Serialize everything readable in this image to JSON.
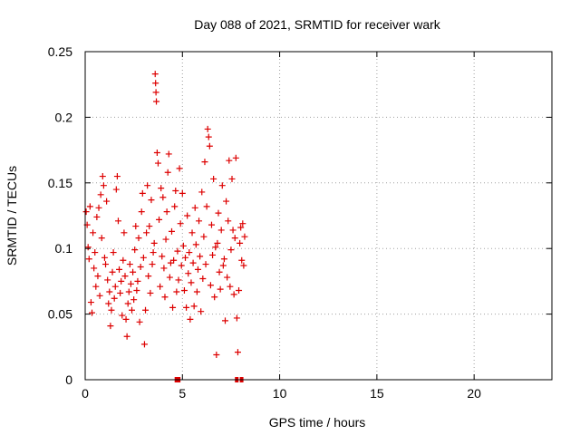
{
  "chart_data": {
    "type": "scatter",
    "title": "Day 088 of 2021, SRMTID for receiver wark",
    "xlabel": "GPS time / hours",
    "ylabel": "SRMTID / TECUs",
    "xlim": [
      0,
      24
    ],
    "ylim": [
      0,
      0.25
    ],
    "xticks": [
      0,
      5,
      10,
      15,
      20
    ],
    "xtick_labels": [
      "0",
      "5",
      "10",
      "15",
      "20"
    ],
    "yticks": [
      0,
      0.05,
      0.1,
      0.15,
      0.2,
      0.25
    ],
    "ytick_labels": [
      "0",
      "0.05",
      "0.1",
      "0.15",
      "0.2",
      "0.25"
    ],
    "grid": true,
    "marker": "+",
    "color": "#dd0000",
    "series": [
      {
        "name": "SRMTID",
        "points": [
          [
            0.05,
            0.128
          ],
          [
            0.1,
            0.118
          ],
          [
            0.15,
            0.101
          ],
          [
            0.2,
            0.092
          ],
          [
            0.25,
            0.132
          ],
          [
            0.3,
            0.059
          ],
          [
            0.35,
            0.051
          ],
          [
            0.4,
            0.112
          ],
          [
            0.45,
            0.085
          ],
          [
            0.5,
            0.097
          ],
          [
            0.55,
            0.071
          ],
          [
            0.6,
            0.124
          ],
          [
            0.65,
            0.079
          ],
          [
            0.7,
            0.131
          ],
          [
            0.75,
            0.064
          ],
          [
            0.8,
            0.141
          ],
          [
            0.85,
            0.108
          ],
          [
            0.9,
            0.155
          ],
          [
            0.95,
            0.148
          ],
          [
            1.0,
            0.093
          ],
          [
            1.05,
            0.088
          ],
          [
            1.1,
            0.136
          ],
          [
            1.15,
            0.076
          ],
          [
            1.2,
            0.058
          ],
          [
            1.25,
            0.067
          ],
          [
            1.3,
            0.041
          ],
          [
            1.35,
            0.053
          ],
          [
            1.4,
            0.082
          ],
          [
            1.45,
            0.097
          ],
          [
            1.5,
            0.062
          ],
          [
            1.55,
            0.071
          ],
          [
            1.6,
            0.145
          ],
          [
            1.65,
            0.155
          ],
          [
            1.7,
            0.121
          ],
          [
            1.75,
            0.084
          ],
          [
            1.8,
            0.066
          ],
          [
            1.85,
            0.075
          ],
          [
            1.9,
            0.049
          ],
          [
            1.95,
            0.091
          ],
          [
            2.0,
            0.112
          ],
          [
            2.05,
            0.079
          ],
          [
            2.1,
            0.046
          ],
          [
            2.15,
            0.033
          ],
          [
            2.2,
            0.058
          ],
          [
            2.25,
            0.067
          ],
          [
            2.3,
            0.088
          ],
          [
            2.35,
            0.073
          ],
          [
            2.4,
            0.053
          ],
          [
            2.45,
            0.082
          ],
          [
            2.5,
            0.061
          ],
          [
            2.55,
            0.099
          ],
          [
            2.6,
            0.117
          ],
          [
            2.65,
            0.068
          ],
          [
            2.7,
            0.075
          ],
          [
            2.75,
            0.108
          ],
          [
            2.8,
            0.044
          ],
          [
            2.85,
            0.086
          ],
          [
            2.9,
            0.128
          ],
          [
            2.95,
            0.142
          ],
          [
            3.0,
            0.093
          ],
          [
            3.05,
            0.027
          ],
          [
            3.1,
            0.053
          ],
          [
            3.15,
            0.112
          ],
          [
            3.2,
            0.148
          ],
          [
            3.25,
            0.079
          ],
          [
            3.3,
            0.117
          ],
          [
            3.35,
            0.066
          ],
          [
            3.4,
            0.137
          ],
          [
            3.45,
            0.088
          ],
          [
            3.5,
            0.097
          ],
          [
            3.55,
            0.104
          ],
          [
            3.6,
            0.233
          ],
          [
            3.62,
            0.226
          ],
          [
            3.64,
            0.219
          ],
          [
            3.66,
            0.212
          ],
          [
            3.7,
            0.173
          ],
          [
            3.75,
            0.165
          ],
          [
            3.8,
            0.122
          ],
          [
            3.85,
            0.071
          ],
          [
            3.9,
            0.146
          ],
          [
            3.95,
            0.094
          ],
          [
            4.0,
            0.139
          ],
          [
            4.05,
            0.085
          ],
          [
            4.1,
            0.063
          ],
          [
            4.15,
            0.107
          ],
          [
            4.2,
            0.128
          ],
          [
            4.25,
            0.158
          ],
          [
            4.3,
            0.172
          ],
          [
            4.35,
            0.078
          ],
          [
            4.4,
            0.089
          ],
          [
            4.45,
            0.113
          ],
          [
            4.5,
            0.055
          ],
          [
            4.55,
            0.091
          ],
          [
            4.6,
            0.132
          ],
          [
            4.65,
            0.144
          ],
          [
            4.7,
            0.067
          ],
          [
            4.75,
            0.098
          ],
          [
            4.8,
            0.076
          ],
          [
            4.85,
            0.161
          ],
          [
            4.9,
            0.119
          ],
          [
            4.95,
            0.087
          ],
          [
            5.0,
            0.142
          ],
          [
            5.05,
            0.102
          ],
          [
            5.1,
            0.068
          ],
          [
            5.15,
            0.093
          ],
          [
            5.2,
            0.055
          ],
          [
            5.25,
            0.125
          ],
          [
            5.3,
            0.081
          ],
          [
            5.35,
            0.097
          ],
          [
            5.4,
            0.046
          ],
          [
            5.45,
            0.074
          ],
          [
            5.5,
            0.112
          ],
          [
            5.55,
            0.089
          ],
          [
            5.6,
            0.056
          ],
          [
            5.65,
            0.131
          ],
          [
            5.7,
            0.103
          ],
          [
            5.75,
            0.067
          ],
          [
            5.8,
            0.084
          ],
          [
            5.85,
            0.121
          ],
          [
            5.9,
            0.094
          ],
          [
            5.95,
            0.052
          ],
          [
            6.0,
            0.143
          ],
          [
            6.05,
            0.077
          ],
          [
            6.1,
            0.109
          ],
          [
            6.15,
            0.166
          ],
          [
            6.2,
            0.088
          ],
          [
            6.25,
            0.132
          ],
          [
            6.3,
            0.191
          ],
          [
            6.35,
            0.185
          ],
          [
            6.4,
            0.178
          ],
          [
            6.45,
            0.072
          ],
          [
            6.5,
            0.118
          ],
          [
            6.55,
            0.095
          ],
          [
            6.6,
            0.153
          ],
          [
            6.65,
            0.063
          ],
          [
            6.7,
            0.101
          ],
          [
            6.75,
            0.019
          ],
          [
            6.8,
            0.104
          ],
          [
            6.85,
            0.127
          ],
          [
            6.9,
            0.082
          ],
          [
            6.95,
            0.069
          ],
          [
            7.0,
            0.114
          ],
          [
            7.05,
            0.148
          ],
          [
            7.1,
            0.087
          ],
          [
            7.15,
            0.092
          ],
          [
            7.2,
            0.045
          ],
          [
            7.25,
            0.136
          ],
          [
            7.3,
            0.078
          ],
          [
            7.35,
            0.121
          ],
          [
            7.4,
            0.167
          ],
          [
            7.45,
            0.071
          ],
          [
            7.5,
            0.099
          ],
          [
            7.55,
            0.153
          ],
          [
            7.6,
            0.114
          ],
          [
            7.65,
            0.065
          ],
          [
            7.7,
            0.108
          ],
          [
            7.75,
            0.169
          ],
          [
            7.8,
            0.047
          ],
          [
            7.85,
            0.021
          ],
          [
            7.9,
            0.068
          ],
          [
            7.95,
            0.104
          ],
          [
            8.0,
            0.116
          ],
          [
            8.05,
            0.091
          ],
          [
            8.1,
            0.119
          ],
          [
            8.15,
            0.087
          ],
          [
            8.2,
            0.109
          ]
        ]
      }
    ],
    "gap_markers": [
      {
        "x_start": 4.6,
        "x_end": 4.9
      },
      {
        "x_start": 7.7,
        "x_end": 7.85
      },
      {
        "x_start": 7.95,
        "x_end": 8.1
      }
    ]
  }
}
